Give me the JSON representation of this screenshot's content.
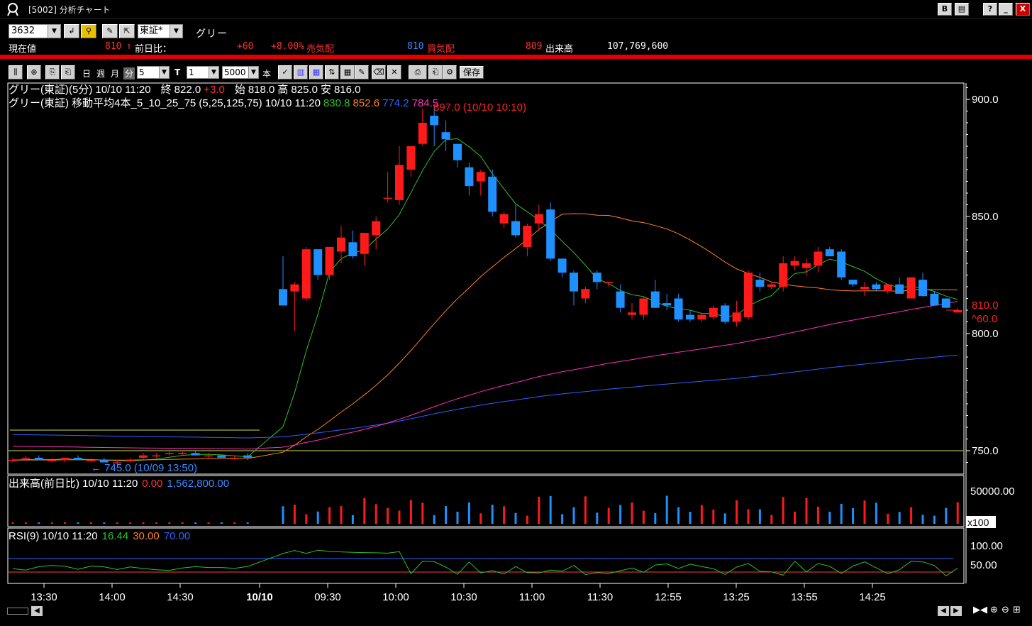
{
  "window": {
    "title": "[5002] 分析チャート",
    "btn_b": "B",
    "btn_doc": "▤",
    "btn_help": "?",
    "btn_min": "_",
    "btn_max": "□",
    "btn_close": "X"
  },
  "symbol": {
    "code": "3632",
    "exchange": "東証*",
    "name": "グリー"
  },
  "quote": {
    "price_label": "現在値",
    "price": "810",
    "arrow": "↑",
    "prevday_label": "前日比：",
    "change": "+60",
    "change_pct": "+8.00%",
    "sell_label": "売気配",
    "sell": "810",
    "buy_label": "買気配",
    "buy": "809",
    "vol_label": "出来高",
    "volume": "107,769,600"
  },
  "toolbar": {
    "day": "日",
    "week": "週",
    "month": "月",
    "minute": "分",
    "interval": "5",
    "type_glyph": "T",
    "count": "1",
    "bars": "5000",
    "book": "本",
    "save": "保存"
  },
  "main_info": {
    "line1_prefix": "グリー(東証)(5分)  10/10 11:20",
    "close_label": "終",
    "close": "822.0",
    "close_change": "+3.0",
    "open_label": "始",
    "open": "818.0",
    "high_label": "高",
    "high": "825.0",
    "low_label": "安",
    "low": "816.0",
    "line2_prefix": "グリー(東証) 移動平均4本_5_10_25_75 (5,25,125,75) 10/10 11:20",
    "ma1": "830.8",
    "ma2": "852.6",
    "ma3": "774.2",
    "ma4": "784.5",
    "peak_label": "897.0 (10/10 10:10)",
    "low_label2": "← 745.0 (10/09 13:50)",
    "last_price": "810.0",
    "last_change": "^60.0"
  },
  "volume_info": {
    "label": "出来高(前日比)  10/10 11:20",
    "v1": "0.00",
    "v2": "1,562,800.00",
    "axis_top": "50000.00",
    "multiplier": "x100"
  },
  "rsi_info": {
    "label": "RSI(9)  10/10 11:20",
    "v": "16.44",
    "lo": "30.00",
    "hi": "70.00",
    "ax1": "100.00",
    "ax2": "50.00"
  },
  "colors": {
    "up": "#ff1a1a",
    "down": "#1e90ff",
    "ma1": "#2fbf2f",
    "ma2": "#ff7f27",
    "ma3": "#3060ff",
    "ma4": "#ff2fbf"
  },
  "chart_data": {
    "type": "candlestick",
    "yaxis": {
      "ticks": [
        900.0,
        850.0,
        800.0,
        750.0
      ],
      "range": [
        740,
        910
      ]
    },
    "xaxis": {
      "ticks": [
        "13:30",
        "14:00",
        "14:30",
        "10/10",
        "09:30",
        "10:00",
        "10:30",
        "11:00",
        "11:30",
        "12:55",
        "13:25",
        "13:55",
        "14:25"
      ]
    },
    "candles": [
      [
        746,
        747,
        745,
        746
      ],
      [
        747,
        748,
        746,
        747
      ],
      [
        747,
        748,
        746,
        746
      ],
      [
        746,
        747,
        745,
        746
      ],
      [
        746,
        747,
        745,
        747
      ],
      [
        747,
        748,
        746,
        746
      ],
      [
        746,
        747,
        745,
        746
      ],
      [
        746,
        747,
        745,
        745
      ],
      [
        745,
        746,
        744,
        745
      ],
      [
        746,
        747,
        745,
        746
      ],
      [
        747,
        749,
        746,
        748
      ],
      [
        748,
        749,
        747,
        748
      ],
      [
        749,
        750,
        748,
        749
      ],
      [
        749,
        750,
        748,
        749
      ],
      [
        749,
        750,
        748,
        748
      ],
      [
        748,
        749,
        747,
        748
      ],
      [
        748,
        748,
        747,
        747
      ],
      [
        747,
        748,
        746,
        747
      ],
      [
        748,
        749,
        746,
        747
      ],
      [
        819,
        833,
        812,
        812
      ],
      [
        818,
        822,
        801,
        821
      ],
      [
        815,
        837,
        814,
        836
      ],
      [
        836,
        836,
        823,
        825
      ],
      [
        825,
        837,
        823,
        837
      ],
      [
        835,
        846,
        830,
        841
      ],
      [
        839,
        844,
        832,
        833
      ],
      [
        834,
        843,
        829,
        843
      ],
      [
        842,
        850,
        836,
        848
      ],
      [
        858,
        869,
        856,
        858
      ],
      [
        857,
        880,
        855,
        872
      ],
      [
        870,
        880,
        867,
        880
      ],
      [
        881,
        896,
        880,
        890
      ],
      [
        893,
        897,
        880,
        889
      ],
      [
        886,
        891,
        878,
        883
      ],
      [
        881,
        881,
        871,
        874
      ],
      [
        871,
        873,
        859,
        863
      ],
      [
        865,
        870,
        859,
        869
      ],
      [
        867,
        870,
        850,
        852
      ],
      [
        847,
        852,
        845,
        851
      ],
      [
        848,
        855,
        841,
        842
      ],
      [
        837,
        847,
        833,
        846
      ],
      [
        847,
        855,
        844,
        851
      ],
      [
        853,
        856,
        831,
        832
      ],
      [
        832,
        832,
        824,
        826
      ],
      [
        826,
        827,
        812,
        818
      ],
      [
        815,
        820,
        813,
        819
      ],
      [
        826,
        827,
        819,
        822
      ],
      [
        822,
        822,
        820,
        822
      ],
      [
        818,
        821,
        809,
        811
      ],
      [
        808,
        813,
        806,
        809
      ],
      [
        808,
        816,
        806,
        815
      ],
      [
        818,
        823,
        811,
        811
      ],
      [
        813,
        817,
        810,
        812
      ],
      [
        815,
        817,
        805,
        806
      ],
      [
        808,
        810,
        805,
        806
      ],
      [
        806,
        809,
        805,
        808
      ],
      [
        807,
        812,
        806,
        811
      ],
      [
        812,
        813,
        804,
        805
      ],
      [
        805,
        814,
        803,
        809
      ],
      [
        807,
        827,
        806,
        826
      ],
      [
        823,
        826,
        818,
        820
      ],
      [
        820,
        822,
        819,
        821
      ],
      [
        820,
        833,
        818,
        830
      ],
      [
        829,
        833,
        827,
        831
      ],
      [
        828,
        832,
        825,
        830
      ],
      [
        829,
        837,
        826,
        835
      ],
      [
        836,
        837,
        833,
        833
      ],
      [
        835,
        836,
        823,
        824
      ],
      [
        823,
        823,
        820,
        821
      ],
      [
        819,
        822,
        816,
        820
      ],
      [
        821,
        822,
        818,
        819
      ],
      [
        818,
        821,
        817,
        821
      ],
      [
        821,
        824,
        818,
        817
      ],
      [
        815,
        824,
        815,
        824
      ],
      [
        823,
        826,
        816,
        816
      ],
      [
        817,
        818,
        812,
        812
      ],
      [
        815,
        815,
        811,
        811
      ],
      [
        809,
        811,
        809,
        810
      ]
    ],
    "ma_lines": [
      "MA5",
      "MA25",
      "MA125",
      "MA75"
    ],
    "volume_axis": [
      50000.0
    ],
    "rsi_levels": [
      30,
      70
    ]
  }
}
